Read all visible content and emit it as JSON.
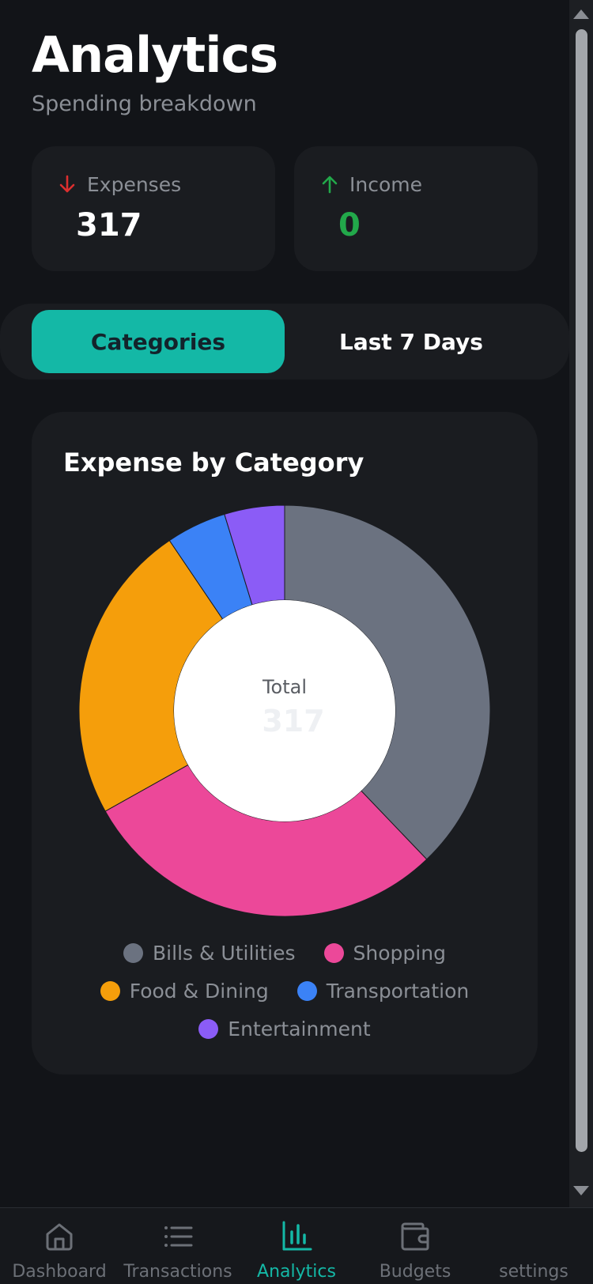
{
  "header": {
    "title": "Analytics",
    "subtitle": "Spending breakdown"
  },
  "stats": {
    "expenses": {
      "label": "Expenses",
      "value": "317",
      "icon": "arrow-down-icon",
      "color": "#dc2f2f"
    },
    "income": {
      "label": "Income",
      "value": "0",
      "icon": "arrow-up-icon",
      "color": "#22a84a"
    }
  },
  "tabs": [
    {
      "label": "Categories",
      "active": true
    },
    {
      "label": "Last 7 Days",
      "active": false
    }
  ],
  "chart_data": {
    "type": "pie",
    "title": "Expense by Category",
    "center_label": "Total",
    "center_value": "317",
    "categories": [
      "Bills & Utilities",
      "Shopping",
      "Food & Dining",
      "Transportation",
      "Entertainment"
    ],
    "values": [
      120,
      92,
      75,
      15,
      15
    ],
    "colors": [
      "#6b7280",
      "#ec4899",
      "#f59e0b",
      "#3b82f6",
      "#8b5cf6"
    ],
    "legend_position": "bottom"
  },
  "nav": {
    "items": [
      {
        "label": "Dashboard",
        "icon": "home-icon",
        "active": false
      },
      {
        "label": "Transactions",
        "icon": "list-icon",
        "active": false
      },
      {
        "label": "Analytics",
        "icon": "bar-chart-icon",
        "active": true
      },
      {
        "label": "Budgets",
        "icon": "wallet-icon",
        "active": false
      },
      {
        "label": "settings",
        "icon": "gear-icon",
        "active": false
      }
    ]
  },
  "colors": {
    "accent": "#14b8a6",
    "background": "#121418",
    "card": "#1a1c20"
  }
}
